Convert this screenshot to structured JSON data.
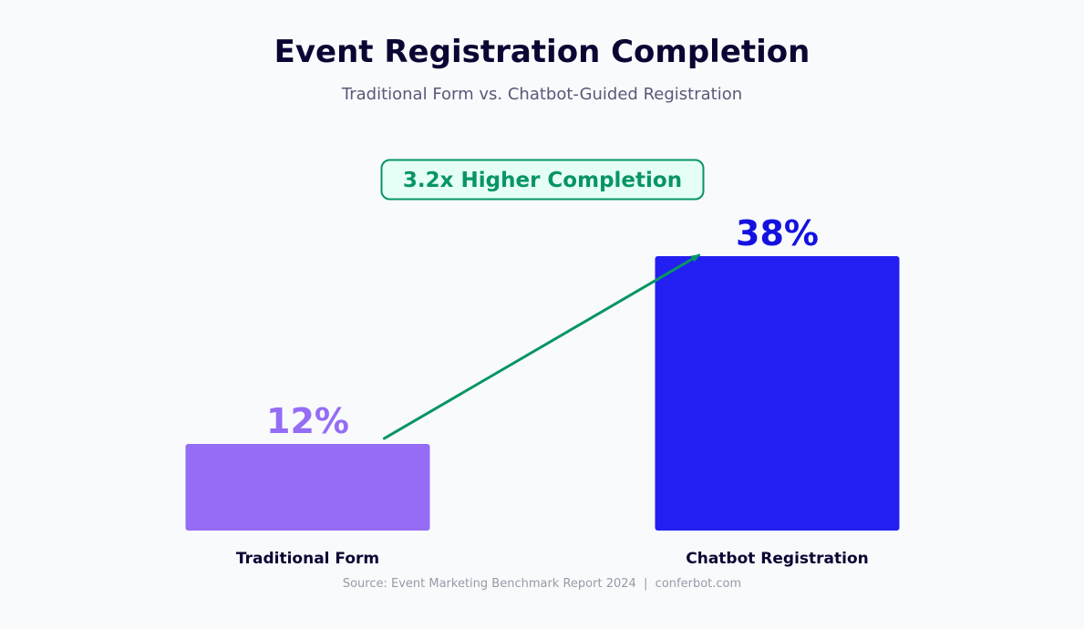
{
  "colors": {
    "background": "#f8fafc",
    "title": "#0b0533",
    "subtitle": "#5b5878",
    "category_label": "#0b0533",
    "source": "#9a9aa6",
    "arrow": "#079565",
    "callout_text": "#079565",
    "callout_fill": "#e6fff6",
    "callout_border": "#079565"
  },
  "chart_data": {
    "type": "bar",
    "title": "Event Registration Completion",
    "subtitle": "Traditional Form vs. Chatbot-Guided Registration",
    "categories": [
      "Traditional Form",
      "Chatbot Registration"
    ],
    "values": [
      12,
      38
    ],
    "value_labels": [
      "12%",
      "38%"
    ],
    "unit": "%",
    "bar_colors": [
      "#956cf5",
      "#231ff2"
    ],
    "label_colors": [
      "#956cf5",
      "#1411e0"
    ],
    "ylim": [
      0,
      38
    ],
    "grid": false,
    "axes_visible": false,
    "legend": "none",
    "annotation": {
      "text": "3.2x Higher Completion",
      "from_category": "Traditional Form",
      "to_category": "Chatbot Registration",
      "type": "arrow"
    },
    "source": "Source: Event Marketing Benchmark Report 2024  |  conferbot.com"
  }
}
